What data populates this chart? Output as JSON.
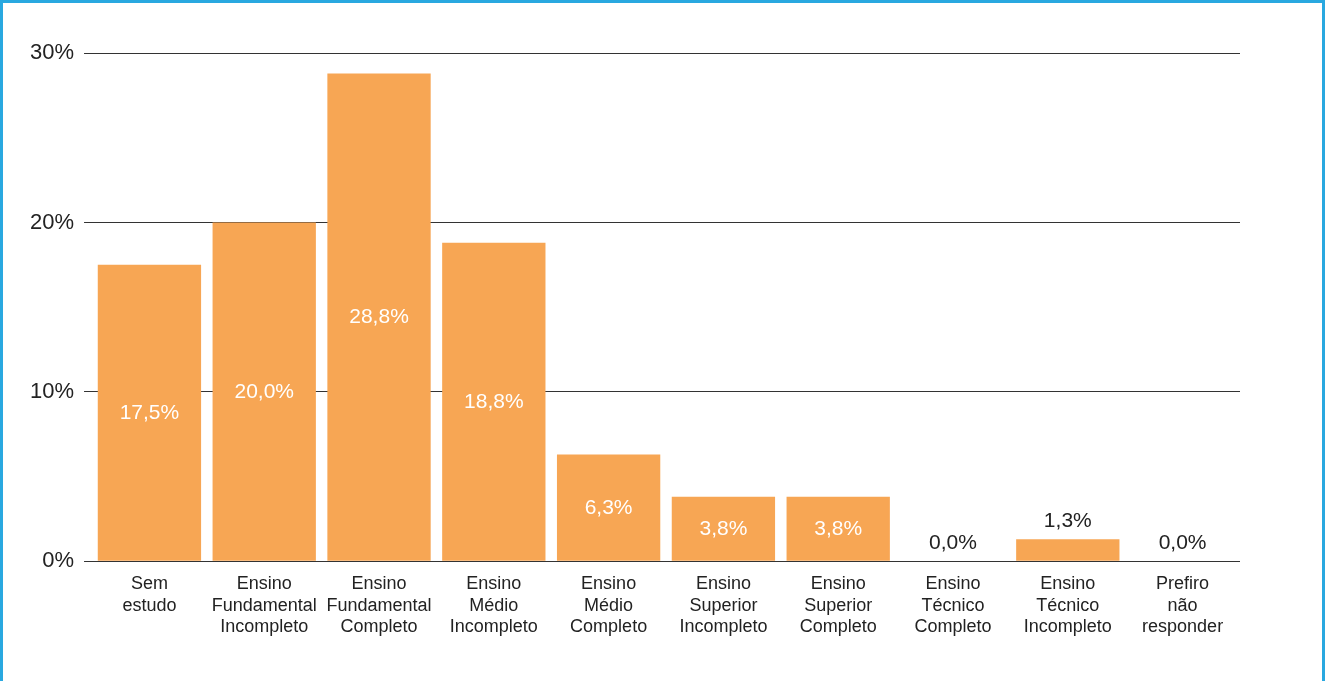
{
  "chart_data": {
    "type": "bar",
    "categories": [
      "Sem estudo",
      "Ensino Fundamental Incompleto",
      "Ensino Fundamental Completo",
      "Ensino Médio Incompleto",
      "Ensino Médio Completo",
      "Ensino Superior Incompleto",
      "Ensino Superior Completo",
      "Ensino Técnico Completo",
      "Ensino Técnico Incompleto",
      "Prefiro não responder"
    ],
    "values": [
      17.5,
      20.0,
      28.8,
      18.8,
      6.3,
      3.8,
      3.8,
      0.0,
      1.3,
      0.0
    ],
    "value_labels": [
      "17,5%",
      "20,0%",
      "28,8%",
      "18,8%",
      "6,3%",
      "3,8%",
      "3,8%",
      "0,0%",
      "1,3%",
      "0,0%"
    ],
    "color": "#f7a654",
    "ylim": [
      0,
      30
    ],
    "yticks": [
      {
        "value": 0,
        "label": "0%"
      },
      {
        "value": 10,
        "label": "10%"
      },
      {
        "value": 20,
        "label": "20%"
      },
      {
        "value": 30,
        "label": "30%"
      }
    ],
    "grid": "y",
    "legend": false
  }
}
